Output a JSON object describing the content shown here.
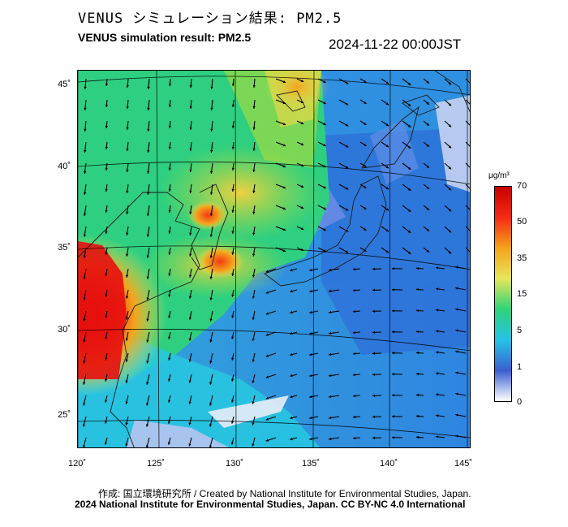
{
  "header": {
    "title_jp": "VENUS シミュレーション結果: PM2.5",
    "title_en": "VENUS simulation result: PM2.5",
    "datetime": "2024-11-22 00:00JST"
  },
  "map": {
    "latitude_ticks": [
      "45˚",
      "40˚",
      "35˚",
      "30˚",
      "25˚"
    ],
    "longitude_ticks": [
      "120˚",
      "125˚",
      "130˚",
      "135˚",
      "140˚",
      "145˚"
    ],
    "layers": [
      "pm25-concentration",
      "wind-vectors",
      "coastlines",
      "graticule"
    ]
  },
  "colorbar": {
    "unit": "μg/m³",
    "ticks": [
      "70",
      "50",
      "35",
      "15",
      "5",
      "1",
      "0"
    ],
    "colors": [
      "#ffffff",
      "#3a5fcf",
      "#26c2e6",
      "#2ed37a",
      "#e6e65a",
      "#f5a31c",
      "#f32a14",
      "#c80000"
    ]
  },
  "footer": {
    "credit": "作成: 国立環境研究所 / Created by National Institute for Environmental Studies, Japan.",
    "license": "2024 National Institute for Environmental Studies, Japan. CC BY-NC 4.0 International"
  }
}
